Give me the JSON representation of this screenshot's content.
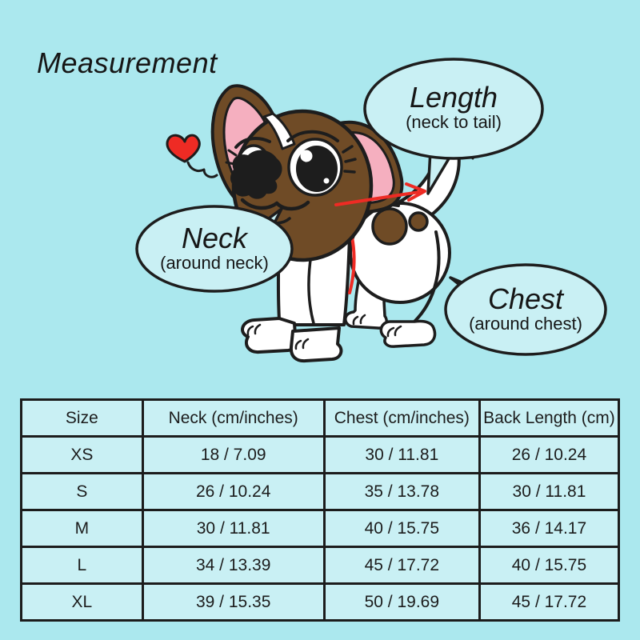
{
  "title": "Measurement",
  "colors": {
    "bg": "#abe8ee",
    "panel": "#c9f0f4",
    "ink": "#1d1d1d",
    "red": "#ee2b24",
    "brown": "#6f4b26",
    "pink": "#f5afbf"
  },
  "icons": {
    "heart": "❤",
    "length_arrow": "➤"
  },
  "labels": {
    "length": {
      "title": "Length",
      "subtitle": "(neck to tail)"
    },
    "neck": {
      "title": "Neck",
      "subtitle": "(around neck)"
    },
    "chest": {
      "title": "Chest",
      "subtitle": "(around chest)"
    }
  },
  "table": {
    "headers": [
      "Size",
      "Neck (cm/inches)",
      "Chest (cm/inches)",
      "Back Length (cm)"
    ],
    "rows": [
      [
        "XS",
        "18 / 7.09",
        "30 / 11.81",
        "26 / 10.24"
      ],
      [
        "S",
        "26 / 10.24",
        "35 / 13.78",
        "30 / 11.81"
      ],
      [
        "M",
        "30 / 11.81",
        "40 / 15.75",
        "36 / 14.17"
      ],
      [
        "L",
        "34 / 13.39",
        "45 / 17.72",
        "40 / 15.75"
      ],
      [
        "XL",
        "39 / 15.35",
        "50 / 19.69",
        "45 / 17.72"
      ]
    ]
  }
}
